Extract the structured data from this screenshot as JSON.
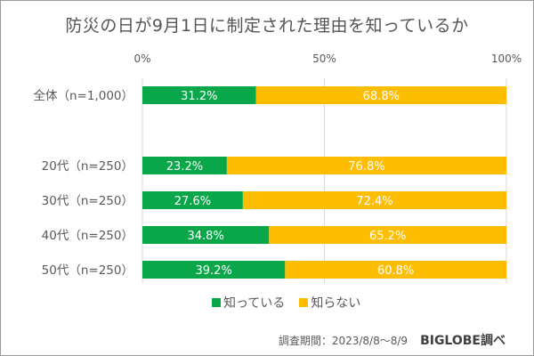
{
  "chart_data": {
    "type": "bar",
    "orientation": "horizontal",
    "stacked": true,
    "title": "防災の日が9月1日に制定された理由を知っているか",
    "categories": [
      "全体（n=1,000）",
      "20代（n=250）",
      "30代（n=250）",
      "40代（n=250）",
      "50代（n=250）"
    ],
    "series": [
      {
        "name": "知っている",
        "color": "#0aa64a",
        "values": [
          31.2,
          23.2,
          27.6,
          34.8,
          39.2
        ],
        "labels": [
          "31.2%",
          "23.2%",
          "27.6%",
          "34.8%",
          "39.2%"
        ]
      },
      {
        "name": "知らない",
        "color": "#fdbd00",
        "values": [
          68.8,
          76.8,
          72.4,
          65.2,
          60.8
        ],
        "labels": [
          "68.8%",
          "76.8%",
          "72.4%",
          "65.2%",
          "60.8%"
        ]
      }
    ],
    "xlim": [
      0,
      100
    ],
    "xticks": [
      0,
      50,
      100
    ],
    "xtick_labels": [
      "0%",
      "50%",
      "100%"
    ],
    "grid": true,
    "legend_position": "bottom"
  },
  "footer": {
    "period": "調査期間：2023/8/8〜8/9",
    "source": "BIGLOBE調べ"
  }
}
